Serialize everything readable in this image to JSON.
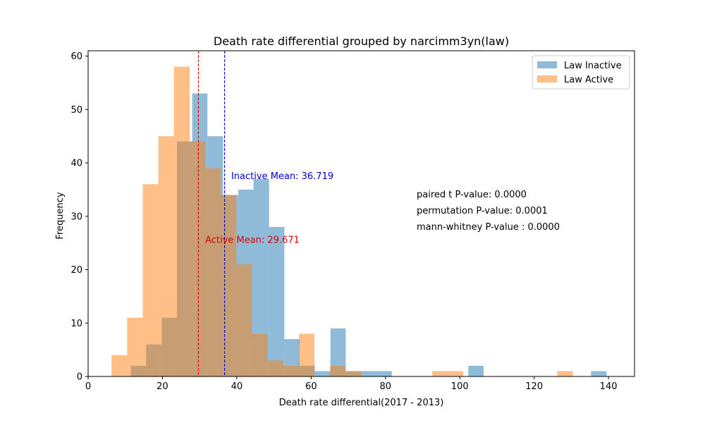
{
  "chart_data": {
    "type": "bar",
    "subtype": "overlaid-histogram",
    "title": "Death rate differential grouped by narcimm3yn(law)",
    "xlabel": "Death rate differential(2017 - 2013)",
    "ylabel": "Frequency",
    "xlim": [
      0,
      147
    ],
    "ylim": [
      0,
      61
    ],
    "xticks": [
      0,
      20,
      40,
      60,
      80,
      100,
      120,
      140
    ],
    "yticks": [
      0,
      10,
      20,
      30,
      40,
      50,
      60
    ],
    "grid": false,
    "legend_position": "top-right",
    "series": [
      {
        "name": "Law Inactive",
        "color": "#1f77b4",
        "alpha": 0.5,
        "bins": [
          [
            11.5,
            15.6,
            2
          ],
          [
            15.6,
            19.8,
            6
          ],
          [
            19.8,
            23.9,
            11
          ],
          [
            23.9,
            28.0,
            44
          ],
          [
            28.0,
            32.1,
            53
          ],
          [
            32.1,
            36.3,
            45
          ],
          [
            36.3,
            40.4,
            34
          ],
          [
            40.4,
            44.5,
            35
          ],
          [
            44.5,
            48.7,
            37
          ],
          [
            48.7,
            52.8,
            28
          ],
          [
            52.8,
            56.9,
            7
          ],
          [
            56.9,
            61.0,
            2
          ],
          [
            61.0,
            65.2,
            1
          ],
          [
            65.2,
            69.3,
            9
          ],
          [
            69.3,
            73.4,
            1
          ],
          [
            73.4,
            77.5,
            1
          ],
          [
            77.5,
            81.7,
            1
          ],
          [
            102.3,
            106.4,
            2
          ],
          [
            135.3,
            139.5,
            1
          ]
        ]
      },
      {
        "name": "Law Active",
        "color": "#ff7f0e",
        "alpha": 0.5,
        "bins": [
          [
            6.3,
            10.5,
            4
          ],
          [
            10.5,
            14.7,
            11
          ],
          [
            14.7,
            18.9,
            36
          ],
          [
            18.9,
            23.1,
            45
          ],
          [
            23.1,
            27.3,
            58
          ],
          [
            27.3,
            31.5,
            44
          ],
          [
            31.5,
            35.7,
            39
          ],
          [
            35.7,
            39.9,
            34
          ],
          [
            39.9,
            44.1,
            21
          ],
          [
            44.1,
            48.3,
            8
          ],
          [
            48.3,
            52.5,
            3
          ],
          [
            52.5,
            56.7,
            2
          ],
          [
            56.7,
            60.9,
            8
          ],
          [
            60.9,
            65.1,
            0
          ],
          [
            65.1,
            69.3,
            2
          ],
          [
            69.3,
            73.5,
            1
          ],
          [
            92.6,
            100.9,
            1
          ],
          [
            126.2,
            130.4,
            1
          ]
        ]
      }
    ],
    "mean_lines": [
      {
        "name": "Inactive Mean",
        "label": "Inactive Mean: 36.719",
        "value": 36.719,
        "color": "#0000cc",
        "label_x": 38.5,
        "label_y": 37
      },
      {
        "name": "Active Mean",
        "label": "Active Mean: 29.671",
        "value": 29.671,
        "color": "#dd0000",
        "label_x": 31.5,
        "label_y": 25
      }
    ],
    "stat_annotations": [
      "paired t P-value: 0.0000",
      "permutation P-value: 0.0001",
      "mann-whitney P-value : 0.0000"
    ]
  }
}
